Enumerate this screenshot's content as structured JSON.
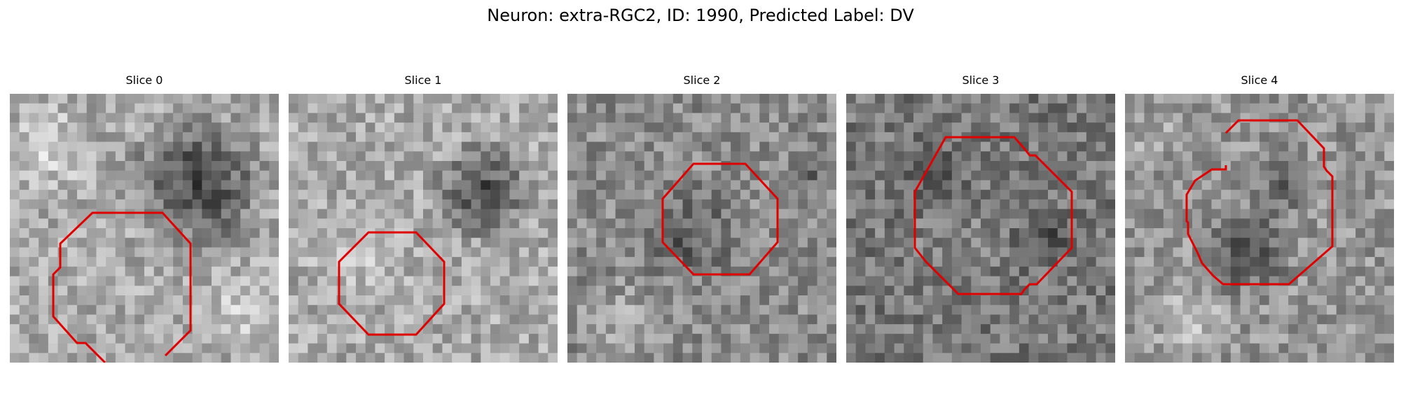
{
  "figure": {
    "title": "Neuron: extra-RGC2, ID: 1990, Predicted Label: DV"
  },
  "outline_color": "#e00000",
  "slices": [
    {
      "title": "Slice 0",
      "seed": 11
    },
    {
      "title": "Slice 1",
      "seed": 23
    },
    {
      "title": "Slice 2",
      "seed": 37
    },
    {
      "title": "Slice 3",
      "seed": 41
    },
    {
      "title": "Slice 4",
      "seed": 59
    }
  ]
}
